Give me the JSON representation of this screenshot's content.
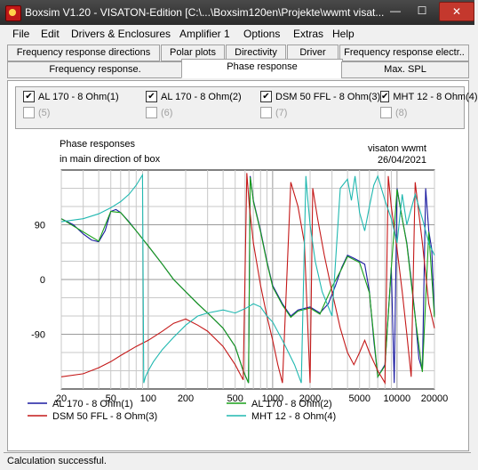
{
  "window": {
    "title": "Boxsim V1.20 - VISATON-Edition [C:\\...\\Boxsim120en\\Projekte\\wwmt visat...",
    "min_glyph": "—",
    "max_glyph": "☐",
    "close_glyph": "✕"
  },
  "menu": [
    "File",
    "Edit",
    "Drivers & Enclosures",
    "Amplifier 1",
    "Options",
    "Extras",
    "Help"
  ],
  "tabs_row1": [
    "Frequency response directions",
    "Polar plots",
    "Directivity",
    "Driver",
    "Frequency response electr.."
  ],
  "tabs_row2": [
    "Frequency response.",
    "Phase response",
    "Max. SPL"
  ],
  "active_tab": "Phase response",
  "drivers": [
    {
      "label": "AL 170 - 8 Ohm(1)",
      "checked": true
    },
    {
      "label": "AL 170 - 8 Ohm(2)",
      "checked": true
    },
    {
      "label": "DSM 50 FFL - 8 Ohm(3)",
      "checked": true
    },
    {
      "label": "MHT 12 - 8 Ohm(4)",
      "checked": true
    },
    {
      "label": "(5)",
      "checked": false
    },
    {
      "label": "(6)",
      "checked": false
    },
    {
      "label": "(7)",
      "checked": false
    },
    {
      "label": "(8)",
      "checked": false
    }
  ],
  "chart_data": {
    "type": "line",
    "title": "Phase responses",
    "subtitle": "in main direction of box",
    "project": "visaton wwmt",
    "date": "26/04/2021",
    "xscale": "log",
    "xlim": [
      20,
      20000
    ],
    "ylim": [
      -180,
      180
    ],
    "x_ticks": [
      20,
      50,
      100,
      200,
      500,
      1000,
      2000,
      5000,
      10000,
      20000
    ],
    "x_tick_labels": [
      "20",
      "50",
      "100",
      "200",
      "500",
      "1000",
      "2000",
      "5000",
      "10000",
      "20000"
    ],
    "y_ticks": [
      90,
      0,
      -90
    ],
    "y_tick_labels": [
      "90",
      "0",
      "-90"
    ],
    "grid": true,
    "legend_position": "bottom",
    "series": [
      {
        "name": "AL 170 - 8 Ohm(1)",
        "color": "#1a1aa0",
        "x": [
          20,
          25,
          30,
          35,
          40,
          45,
          50,
          55,
          60,
          70,
          80,
          100,
          130,
          160,
          200,
          250,
          300,
          400,
          500,
          580,
          640,
          660,
          700,
          800,
          900,
          1000,
          1200,
          1400,
          1600,
          2000,
          2400,
          2800,
          3200,
          3600,
          4000,
          4500,
          5000,
          5500,
          6000,
          6500,
          7000,
          8000,
          9000,
          9500,
          10000,
          11000,
          12000,
          13000,
          14000,
          15000,
          16000,
          17000,
          18000,
          19000,
          20000
        ],
        "y": [
          100,
          90,
          75,
          65,
          62,
          80,
          112,
          115,
          110,
          95,
          80,
          55,
          25,
          0,
          -20,
          -40,
          -55,
          -80,
          -110,
          -150,
          -170,
          170,
          130,
          80,
          30,
          -10,
          -40,
          -60,
          -50,
          -45,
          -55,
          -40,
          -10,
          20,
          40,
          35,
          30,
          25,
          -20,
          -100,
          -160,
          -140,
          20,
          -170,
          150,
          100,
          60,
          0,
          -60,
          -130,
          -150,
          150,
          80,
          50,
          -60
        ]
      },
      {
        "name": "AL 170 - 8 Ohm(2)",
        "color": "#18a018",
        "x": [
          20,
          40,
          50,
          60,
          80,
          100,
          130,
          160,
          200,
          250,
          300,
          400,
          500,
          580,
          640,
          660,
          700,
          800,
          900,
          1000,
          1200,
          1400,
          1600,
          2000,
          2400,
          3000,
          3600,
          4000,
          5000,
          6000,
          7000,
          8000,
          9000,
          10000,
          12000,
          14000,
          16000,
          18000,
          20000
        ],
        "y": [
          100,
          63,
          112,
          110,
          80,
          55,
          25,
          0,
          -20,
          -40,
          -55,
          -80,
          -110,
          -150,
          -170,
          168,
          128,
          78,
          28,
          -12,
          -42,
          -62,
          -52,
          -47,
          -57,
          -12,
          18,
          38,
          28,
          -22,
          -160,
          -142,
          18,
          148,
          58,
          -62,
          -152,
          78,
          -62
        ]
      },
      {
        "name": "DSM 50 FFL - 8 Ohm(3)",
        "color": "#c41818",
        "x": [
          20,
          30,
          40,
          50,
          60,
          80,
          100,
          130,
          160,
          200,
          250,
          300,
          400,
          500,
          580,
          620,
          650,
          700,
          800,
          900,
          1000,
          1100,
          1200,
          1400,
          1600,
          1800,
          2000,
          2100,
          2300,
          2600,
          3000,
          3500,
          4000,
          4500,
          5000,
          5500,
          6000,
          7000,
          8000,
          8500,
          9000,
          10000,
          11000,
          12000,
          13000,
          14000,
          16000,
          18000,
          20000
        ],
        "y": [
          -160,
          -155,
          -145,
          -135,
          -125,
          -110,
          -100,
          -85,
          -72,
          -65,
          -75,
          -85,
          -110,
          -140,
          -165,
          175,
          120,
          60,
          -10,
          -60,
          -100,
          -140,
          -170,
          160,
          120,
          60,
          -170,
          150,
          100,
          40,
          -20,
          -80,
          -120,
          -140,
          -120,
          -100,
          -120,
          -150,
          -170,
          170,
          120,
          50,
          -20,
          -90,
          -160,
          160,
          60,
          -40,
          -80
        ]
      },
      {
        "name": "MHT 12 - 8 Ohm(4)",
        "color": "#20b8b0",
        "x": [
          20,
          30,
          40,
          50,
          60,
          70,
          80,
          90,
          92,
          95,
          100,
          110,
          130,
          160,
          200,
          250,
          300,
          400,
          500,
          600,
          700,
          800,
          900,
          1000,
          1200,
          1500,
          1700,
          1850,
          1900,
          2000,
          2200,
          2500,
          3000,
          3500,
          4000,
          4300,
          4600,
          5000,
          5500,
          6000,
          6500,
          7000,
          8000,
          9000,
          10000,
          11000,
          12000,
          14000,
          16000,
          18000,
          20000
        ],
        "y": [
          95,
          100,
          108,
          118,
          128,
          140,
          155,
          172,
          -170,
          -160,
          -150,
          -135,
          -115,
          -95,
          -75,
          -60,
          -55,
          -50,
          -55,
          -48,
          -40,
          -45,
          -60,
          -70,
          -100,
          -140,
          -170,
          170,
          140,
          90,
          30,
          -20,
          -60,
          150,
          165,
          130,
          170,
          110,
          80,
          120,
          155,
          170,
          130,
          100,
          60,
          140,
          90,
          140,
          100,
          60,
          40
        ]
      }
    ]
  },
  "status": "Calculation successful."
}
